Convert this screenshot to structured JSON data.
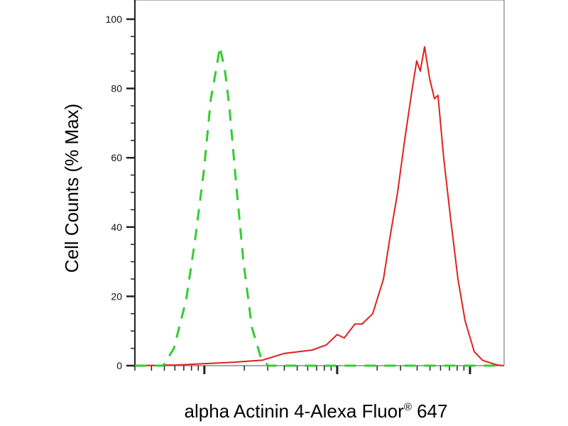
{
  "chart_data": {
    "type": "line",
    "title": "",
    "xlabel": "alpha Actinin 4-Alexa Fluor",
    "xlabel_superscript": "®",
    "xlabel_suffix": " 647",
    "ylabel": "Cell Counts (% Max)",
    "xscale": "log",
    "xlim": [
      3,
      1806
    ],
    "ylim": [
      0,
      105
    ],
    "yticks": [
      0,
      20,
      40,
      60,
      80,
      100
    ],
    "ytick_labels": [
      "0",
      "20",
      "40",
      "60",
      "80",
      "100"
    ],
    "x_major_ticks": [
      10,
      100,
      1000
    ],
    "x_tick_labels_shown": false,
    "grid": false,
    "legend": "none",
    "series": [
      {
        "color": "#e02020",
        "style": "solid",
        "points": [
          [
            3.0,
            0
          ],
          [
            6.3,
            0.2
          ],
          [
            10.2,
            0.6
          ],
          [
            16.8,
            1
          ],
          [
            27.5,
            1.6
          ],
          [
            39.7,
            3.5
          ],
          [
            65,
            4.5
          ],
          [
            83,
            6
          ],
          [
            100,
            9
          ],
          [
            113,
            8
          ],
          [
            136,
            12
          ],
          [
            154,
            12
          ],
          [
            185,
            15
          ],
          [
            223,
            25
          ],
          [
            252,
            38
          ],
          [
            285,
            50
          ],
          [
            322,
            65
          ],
          [
            364,
            79
          ],
          [
            397,
            88
          ],
          [
            422,
            85
          ],
          [
            455,
            92
          ],
          [
            496,
            83
          ],
          [
            540,
            77
          ],
          [
            574,
            78
          ],
          [
            634,
            60
          ],
          [
            717,
            42
          ],
          [
            811,
            25
          ],
          [
            918,
            13
          ],
          [
            1077,
            4
          ],
          [
            1248,
            1.5
          ],
          [
            1596,
            0.2
          ],
          [
            1806,
            0
          ]
        ]
      },
      {
        "color": "#33cc33",
        "style": "dashed",
        "points": [
          [
            3.0,
            0
          ],
          [
            4.9,
            0
          ],
          [
            5.9,
            5
          ],
          [
            7.3,
            19
          ],
          [
            8.5,
            36
          ],
          [
            9.9,
            56
          ],
          [
            11.2,
            77
          ],
          [
            12.2,
            85
          ],
          [
            13.1,
            92
          ],
          [
            14.3,
            85
          ],
          [
            15.4,
            75
          ],
          [
            17.4,
            52
          ],
          [
            19.7,
            30
          ],
          [
            22.8,
            11
          ],
          [
            26.8,
            2
          ],
          [
            30.3,
            0
          ],
          [
            1806,
            0
          ]
        ]
      }
    ]
  }
}
